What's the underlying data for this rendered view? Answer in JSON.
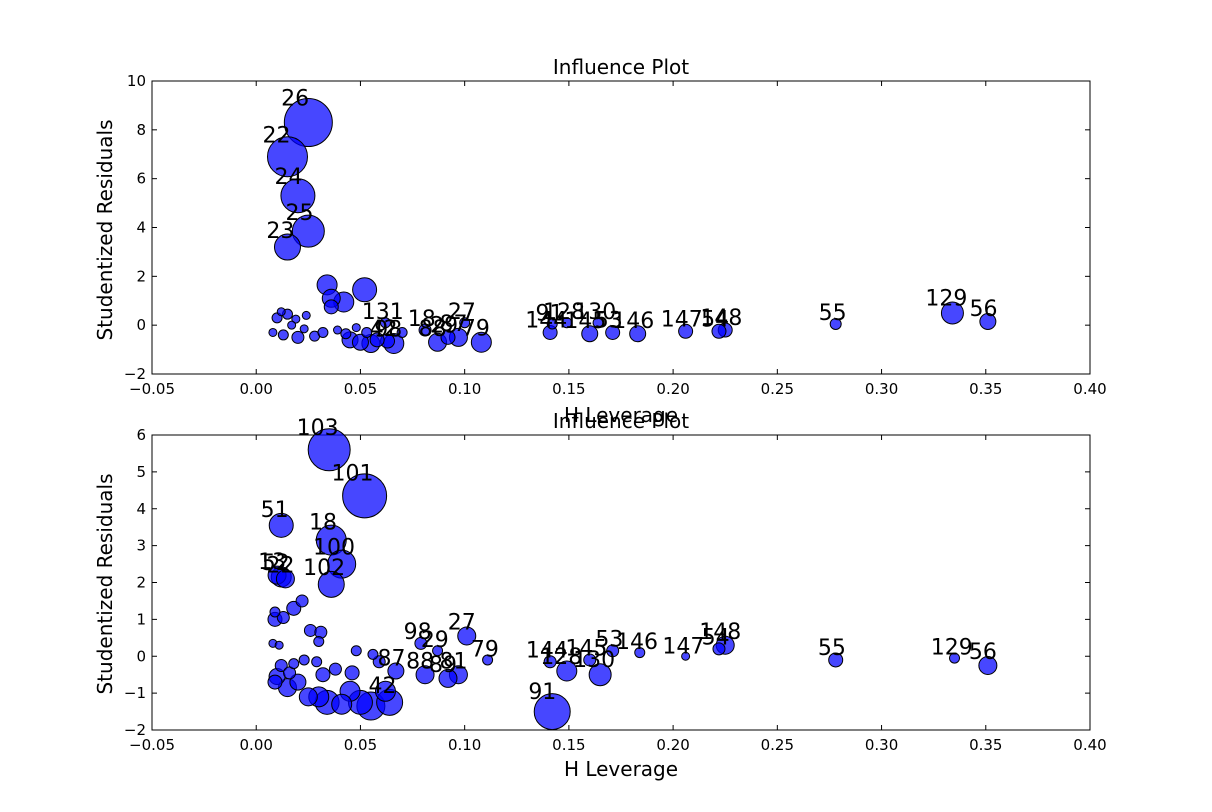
{
  "chart_data": [
    {
      "type": "scatter",
      "title": "Influence Plot",
      "xlabel": "H Leverage",
      "ylabel": "Studentized Residuals",
      "xlim": [
        -0.05,
        0.4
      ],
      "ylim": [
        -2,
        10
      ],
      "xticks": [
        "−0.05",
        "0.00",
        "0.05",
        "0.10",
        "0.15",
        "0.20",
        "0.25",
        "0.30",
        "0.35",
        "0.40"
      ],
      "yticks": [
        "−2",
        "0",
        "2",
        "4",
        "6",
        "8",
        "10"
      ],
      "xtick_values": [
        -0.05,
        0,
        0.05,
        0.1,
        0.15,
        0.2,
        0.25,
        0.3,
        0.35,
        0.4
      ],
      "ytick_values": [
        -2,
        0,
        2,
        4,
        6,
        8,
        10
      ],
      "marker_color": "#0000ff",
      "points": [
        {
          "x": 0.025,
          "y": 8.3,
          "size": 0.24,
          "label": "26"
        },
        {
          "x": 0.015,
          "y": 6.9,
          "size": 0.2,
          "label": "22"
        },
        {
          "x": 0.02,
          "y": 5.3,
          "size": 0.17,
          "label": "24"
        },
        {
          "x": 0.025,
          "y": 3.85,
          "size": 0.16,
          "label": "25"
        },
        {
          "x": 0.015,
          "y": 3.2,
          "size": 0.13,
          "label": "23"
        },
        {
          "x": 0.334,
          "y": 0.5,
          "size": 0.11,
          "label": "129"
        },
        {
          "x": 0.351,
          "y": 0.15,
          "size": 0.08,
          "label": "56"
        },
        {
          "x": 0.278,
          "y": 0.05,
          "size": 0.055,
          "label": "55"
        },
        {
          "x": 0.225,
          "y": -0.2,
          "size": 0.07,
          "label": "148"
        },
        {
          "x": 0.222,
          "y": -0.25,
          "size": 0.07,
          "label": "54"
        },
        {
          "x": 0.206,
          "y": -0.25,
          "size": 0.07,
          "label": "147"
        },
        {
          "x": 0.183,
          "y": -0.35,
          "size": 0.08,
          "label": "146"
        },
        {
          "x": 0.171,
          "y": -0.3,
          "size": 0.07,
          "label": "53"
        },
        {
          "x": 0.164,
          "y": 0.1,
          "size": 0.05,
          "label": "130"
        },
        {
          "x": 0.16,
          "y": -0.35,
          "size": 0.08,
          "label": "145"
        },
        {
          "x": 0.149,
          "y": 0.1,
          "size": 0.05,
          "label": "128"
        },
        {
          "x": 0.142,
          "y": 0.05,
          "size": 0.05,
          "label": "91"
        },
        {
          "x": 0.141,
          "y": -0.3,
          "size": 0.07,
          "label": "144"
        },
        {
          "x": 0.108,
          "y": -0.7,
          "size": 0.1,
          "label": "79"
        },
        {
          "x": 0.1,
          "y": 0.1,
          "size": 0.05,
          "label": "27"
        },
        {
          "x": 0.097,
          "y": -0.5,
          "size": 0.09,
          "label": "87"
        },
        {
          "x": 0.092,
          "y": -0.5,
          "size": 0.07,
          "label": "29"
        },
        {
          "x": 0.087,
          "y": -0.7,
          "size": 0.09,
          "label": "88"
        },
        {
          "x": 0.081,
          "y": -0.2,
          "size": 0.06,
          "label": "18"
        },
        {
          "x": 0.066,
          "y": -0.75,
          "size": 0.1,
          "label": "98"
        },
        {
          "x": 0.063,
          "y": -0.65,
          "size": 0.07,
          "label": "42"
        },
        {
          "x": 0.062,
          "y": 0.1,
          "size": 0.05,
          "label": "131"
        },
        {
          "x": 0.052,
          "y": 1.45,
          "size": 0.12,
          "label": ""
        },
        {
          "x": 0.034,
          "y": 1.65,
          "size": 0.1,
          "label": ""
        },
        {
          "x": 0.042,
          "y": 0.95,
          "size": 0.1,
          "label": ""
        },
        {
          "x": 0.036,
          "y": 1.1,
          "size": 0.09,
          "label": ""
        },
        {
          "x": 0.036,
          "y": 0.75,
          "size": 0.07,
          "label": ""
        },
        {
          "x": 0.012,
          "y": 0.55,
          "size": 0.04,
          "label": ""
        },
        {
          "x": 0.015,
          "y": 0.45,
          "size": 0.05,
          "label": ""
        },
        {
          "x": 0.01,
          "y": 0.3,
          "size": 0.05,
          "label": ""
        },
        {
          "x": 0.019,
          "y": 0.25,
          "size": 0.04,
          "label": ""
        },
        {
          "x": 0.024,
          "y": 0.4,
          "size": 0.04,
          "label": ""
        },
        {
          "x": 0.008,
          "y": -0.3,
          "size": 0.04,
          "label": ""
        },
        {
          "x": 0.013,
          "y": -0.4,
          "size": 0.05,
          "label": ""
        },
        {
          "x": 0.02,
          "y": -0.5,
          "size": 0.06,
          "label": ""
        },
        {
          "x": 0.028,
          "y": -0.45,
          "size": 0.05,
          "label": ""
        },
        {
          "x": 0.032,
          "y": -0.3,
          "size": 0.05,
          "label": ""
        },
        {
          "x": 0.039,
          "y": -0.2,
          "size": 0.04,
          "label": ""
        },
        {
          "x": 0.045,
          "y": -0.6,
          "size": 0.08,
          "label": ""
        },
        {
          "x": 0.05,
          "y": -0.7,
          "size": 0.08,
          "label": ""
        },
        {
          "x": 0.055,
          "y": -0.75,
          "size": 0.09,
          "label": ""
        },
        {
          "x": 0.058,
          "y": -0.6,
          "size": 0.07,
          "label": ""
        },
        {
          "x": 0.048,
          "y": -0.1,
          "size": 0.04,
          "label": ""
        },
        {
          "x": 0.053,
          "y": -0.3,
          "size": 0.05,
          "label": ""
        },
        {
          "x": 0.07,
          "y": -0.3,
          "size": 0.05,
          "label": ""
        },
        {
          "x": 0.023,
          "y": -0.15,
          "size": 0.04,
          "label": ""
        },
        {
          "x": 0.017,
          "y": 0.0,
          "size": 0.04,
          "label": ""
        },
        {
          "x": 0.043,
          "y": -0.35,
          "size": 0.05,
          "label": ""
        }
      ]
    },
    {
      "type": "scatter",
      "title": "Influence Plot",
      "xlabel": "H Leverage",
      "ylabel": "Studentized Residuals",
      "xlim": [
        -0.05,
        0.4
      ],
      "ylim": [
        -2,
        6
      ],
      "xticks": [
        "−0.05",
        "0.00",
        "0.05",
        "0.10",
        "0.15",
        "0.20",
        "0.25",
        "0.30",
        "0.35",
        "0.40"
      ],
      "yticks": [
        "−2",
        "−1",
        "0",
        "1",
        "2",
        "3",
        "4",
        "5",
        "6"
      ],
      "xtick_values": [
        -0.05,
        0,
        0.05,
        0.1,
        0.15,
        0.2,
        0.25,
        0.3,
        0.35,
        0.4
      ],
      "ytick_values": [
        -2,
        -1,
        0,
        1,
        2,
        3,
        4,
        5,
        6
      ],
      "marker_color": "#0000ff",
      "points": [
        {
          "x": 0.035,
          "y": 5.6,
          "size": 0.21,
          "label": "103"
        },
        {
          "x": 0.052,
          "y": 4.35,
          "size": 0.22,
          "label": "101"
        },
        {
          "x": 0.012,
          "y": 3.55,
          "size": 0.12,
          "label": "51"
        },
        {
          "x": 0.036,
          "y": 3.15,
          "size": 0.15,
          "label": "18"
        },
        {
          "x": 0.041,
          "y": 2.5,
          "size": 0.14,
          "label": "100"
        },
        {
          "x": 0.036,
          "y": 1.95,
          "size": 0.13,
          "label": "102"
        },
        {
          "x": 0.012,
          "y": 2.15,
          "size": 0.1,
          "label": "52"
        },
        {
          "x": 0.01,
          "y": 2.2,
          "size": 0.09,
          "label": "13"
        },
        {
          "x": 0.014,
          "y": 2.1,
          "size": 0.09,
          "label": "22"
        },
        {
          "x": 0.351,
          "y": -0.25,
          "size": 0.09,
          "label": "56"
        },
        {
          "x": 0.335,
          "y": -0.05,
          "size": 0.05,
          "label": "129"
        },
        {
          "x": 0.278,
          "y": -0.1,
          "size": 0.07,
          "label": "55"
        },
        {
          "x": 0.225,
          "y": 0.3,
          "size": 0.09,
          "label": "148"
        },
        {
          "x": 0.222,
          "y": 0.2,
          "size": 0.06,
          "label": "54"
        },
        {
          "x": 0.206,
          "y": 0.0,
          "size": 0.04,
          "label": "147"
        },
        {
          "x": 0.184,
          "y": 0.1,
          "size": 0.05,
          "label": "146"
        },
        {
          "x": 0.171,
          "y": 0.15,
          "size": 0.06,
          "label": "53"
        },
        {
          "x": 0.165,
          "y": -0.5,
          "size": 0.11,
          "label": "130"
        },
        {
          "x": 0.16,
          "y": -0.1,
          "size": 0.06,
          "label": "145"
        },
        {
          "x": 0.149,
          "y": -0.4,
          "size": 0.1,
          "label": "128"
        },
        {
          "x": 0.142,
          "y": -1.5,
          "size": 0.18,
          "label": "91"
        },
        {
          "x": 0.141,
          "y": -0.15,
          "size": 0.06,
          "label": "144"
        },
        {
          "x": 0.111,
          "y": -0.1,
          "size": 0.05,
          "label": "79"
        },
        {
          "x": 0.101,
          "y": 0.55,
          "size": 0.09,
          "label": "27"
        },
        {
          "x": 0.097,
          "y": -0.5,
          "size": 0.09,
          "label": "81"
        },
        {
          "x": 0.092,
          "y": -0.6,
          "size": 0.09,
          "label": "89"
        },
        {
          "x": 0.087,
          "y": 0.15,
          "size": 0.05,
          "label": "29"
        },
        {
          "x": 0.081,
          "y": -0.5,
          "size": 0.09,
          "label": "88"
        },
        {
          "x": 0.079,
          "y": 0.35,
          "size": 0.06,
          "label": "98"
        },
        {
          "x": 0.067,
          "y": -0.4,
          "size": 0.08,
          "label": "87"
        },
        {
          "x": 0.064,
          "y": -1.25,
          "size": 0.13,
          "label": "42"
        },
        {
          "x": 0.062,
          "y": -0.95,
          "size": 0.1,
          "label": ""
        },
        {
          "x": 0.055,
          "y": -1.35,
          "size": 0.14,
          "label": ""
        },
        {
          "x": 0.05,
          "y": -1.25,
          "size": 0.12,
          "label": ""
        },
        {
          "x": 0.045,
          "y": -0.95,
          "size": 0.1,
          "label": ""
        },
        {
          "x": 0.041,
          "y": -1.3,
          "size": 0.1,
          "label": ""
        },
        {
          "x": 0.034,
          "y": -1.25,
          "size": 0.12,
          "label": ""
        },
        {
          "x": 0.03,
          "y": -1.1,
          "size": 0.1,
          "label": ""
        },
        {
          "x": 0.025,
          "y": -1.1,
          "size": 0.09,
          "label": ""
        },
        {
          "x": 0.02,
          "y": -0.7,
          "size": 0.08,
          "label": ""
        },
        {
          "x": 0.015,
          "y": -0.85,
          "size": 0.09,
          "label": ""
        },
        {
          "x": 0.01,
          "y": -0.55,
          "size": 0.08,
          "label": ""
        },
        {
          "x": 0.009,
          "y": -0.7,
          "size": 0.07,
          "label": ""
        },
        {
          "x": 0.012,
          "y": -0.25,
          "size": 0.06,
          "label": ""
        },
        {
          "x": 0.018,
          "y": -0.2,
          "size": 0.05,
          "label": ""
        },
        {
          "x": 0.023,
          "y": -0.1,
          "size": 0.05,
          "label": ""
        },
        {
          "x": 0.029,
          "y": -0.15,
          "size": 0.05,
          "label": ""
        },
        {
          "x": 0.038,
          "y": -0.35,
          "size": 0.06,
          "label": ""
        },
        {
          "x": 0.046,
          "y": -0.45,
          "size": 0.07,
          "label": ""
        },
        {
          "x": 0.048,
          "y": 0.15,
          "size": 0.05,
          "label": ""
        },
        {
          "x": 0.056,
          "y": 0.05,
          "size": 0.05,
          "label": ""
        },
        {
          "x": 0.059,
          "y": -0.15,
          "size": 0.06,
          "label": ""
        },
        {
          "x": 0.009,
          "y": 1.0,
          "size": 0.07,
          "label": ""
        },
        {
          "x": 0.013,
          "y": 1.05,
          "size": 0.06,
          "label": ""
        },
        {
          "x": 0.009,
          "y": 1.2,
          "size": 0.05,
          "label": ""
        },
        {
          "x": 0.018,
          "y": 1.3,
          "size": 0.07,
          "label": ""
        },
        {
          "x": 0.022,
          "y": 1.5,
          "size": 0.06,
          "label": ""
        },
        {
          "x": 0.026,
          "y": 0.7,
          "size": 0.06,
          "label": ""
        },
        {
          "x": 0.031,
          "y": 0.65,
          "size": 0.06,
          "label": ""
        },
        {
          "x": 0.03,
          "y": 0.4,
          "size": 0.05,
          "label": ""
        },
        {
          "x": 0.008,
          "y": 0.35,
          "size": 0.04,
          "label": ""
        },
        {
          "x": 0.011,
          "y": 0.3,
          "size": 0.04,
          "label": ""
        },
        {
          "x": 0.032,
          "y": -0.5,
          "size": 0.07,
          "label": ""
        },
        {
          "x": 0.016,
          "y": -0.45,
          "size": 0.06,
          "label": ""
        }
      ]
    }
  ]
}
